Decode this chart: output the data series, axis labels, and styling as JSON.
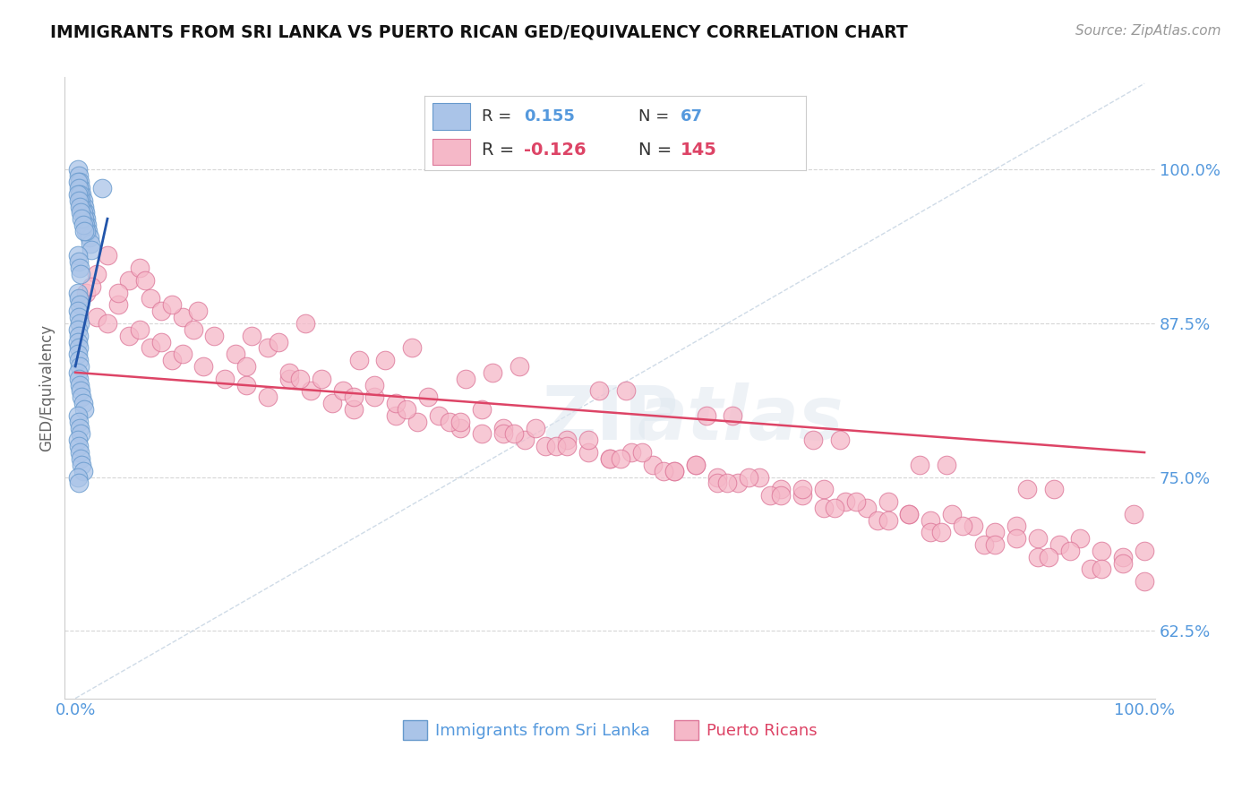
{
  "title": "IMMIGRANTS FROM SRI LANKA VS PUERTO RICAN GED/EQUIVALENCY CORRELATION CHART",
  "source_text": "Source: ZipAtlas.com",
  "ylabel": "GED/Equivalency",
  "legend_label1": "Immigrants from Sri Lanka",
  "legend_label2": "Puerto Ricans",
  "legend_R1_val": "0.155",
  "legend_N1_val": "67",
  "legend_R2_val": "-0.126",
  "legend_N2_val": "145",
  "blue_color": "#aac4e8",
  "blue_edge_color": "#6699cc",
  "pink_color": "#f5b8c8",
  "pink_edge_color": "#dd7799",
  "blue_line_color": "#2255aa",
  "pink_line_color": "#dd4466",
  "ref_line_color": "#bbccdd",
  "grid_color": "#cccccc",
  "background_color": "#ffffff",
  "title_color": "#111111",
  "source_color": "#999999",
  "axis_label_color": "#5599dd",
  "blue_scatter_x": [
    0.2,
    0.3,
    0.4,
    0.5,
    0.6,
    0.7,
    0.8,
    0.9,
    1.0,
    1.1,
    1.2,
    1.3,
    1.4,
    1.5,
    0.2,
    0.3,
    0.4,
    0.5,
    0.6,
    0.7,
    0.8,
    0.9,
    1.0,
    0.2,
    0.3,
    0.4,
    0.5,
    0.6,
    0.7,
    0.8,
    0.2,
    0.3,
    0.4,
    0.2,
    0.3,
    0.4,
    0.2,
    0.3,
    0.2,
    0.3,
    0.2,
    0.3,
    0.4,
    0.2,
    0.3,
    0.4,
    0.5,
    0.6,
    0.7,
    0.8,
    0.2,
    0.3,
    0.4,
    0.5,
    0.2,
    0.3,
    0.4,
    0.5,
    0.6,
    0.7,
    0.2,
    0.3,
    0.2,
    0.3,
    0.4,
    0.5,
    2.5
  ],
  "blue_scatter_y": [
    100.0,
    99.5,
    99.0,
    98.5,
    98.0,
    97.5,
    97.0,
    96.5,
    96.0,
    95.5,
    95.0,
    94.5,
    94.0,
    93.5,
    99.0,
    98.5,
    98.0,
    97.5,
    97.0,
    96.5,
    96.0,
    95.5,
    95.0,
    98.0,
    97.5,
    97.0,
    96.5,
    96.0,
    95.5,
    95.0,
    90.0,
    89.5,
    89.0,
    88.5,
    88.0,
    87.5,
    87.0,
    86.5,
    86.0,
    85.5,
    85.0,
    84.5,
    84.0,
    83.5,
    83.0,
    82.5,
    82.0,
    81.5,
    81.0,
    80.5,
    80.0,
    79.5,
    79.0,
    78.5,
    78.0,
    77.5,
    77.0,
    76.5,
    76.0,
    75.5,
    75.0,
    74.5,
    93.0,
    92.5,
    92.0,
    91.5,
    98.5
  ],
  "pink_scatter_x": [
    1.0,
    2.0,
    3.0,
    4.0,
    5.0,
    6.0,
    7.0,
    8.0,
    9.0,
    10.0,
    12.0,
    14.0,
    16.0,
    18.0,
    20.0,
    22.0,
    24.0,
    26.0,
    28.0,
    30.0,
    32.0,
    34.0,
    36.0,
    38.0,
    40.0,
    42.0,
    44.0,
    46.0,
    48.0,
    50.0,
    52.0,
    54.0,
    56.0,
    58.0,
    60.0,
    62.0,
    64.0,
    66.0,
    68.0,
    70.0,
    72.0,
    74.0,
    76.0,
    78.0,
    80.0,
    82.0,
    84.0,
    86.0,
    88.0,
    90.0,
    92.0,
    94.0,
    96.0,
    98.0,
    100.0,
    3.0,
    5.0,
    7.0,
    10.0,
    15.0,
    20.0,
    25.0,
    30.0,
    35.0,
    40.0,
    45.0,
    50.0,
    55.0,
    60.0,
    65.0,
    70.0,
    75.0,
    80.0,
    85.0,
    90.0,
    95.0,
    100.0,
    2.0,
    4.0,
    8.0,
    13.0,
    18.0,
    23.0,
    28.0,
    33.0,
    38.0,
    43.0,
    48.0,
    53.0,
    58.0,
    63.0,
    68.0,
    73.0,
    78.0,
    83.0,
    88.0,
    93.0,
    98.0,
    6.0,
    11.0,
    16.0,
    21.0,
    26.0,
    31.0,
    36.0,
    41.0,
    46.0,
    51.0,
    56.0,
    61.0,
    66.0,
    71.0,
    76.0,
    81.0,
    86.0,
    91.0,
    96.0,
    9.0,
    19.0,
    29.0,
    39.0,
    49.0,
    59.0,
    69.0,
    79.0,
    89.0,
    99.0,
    1.5,
    11.5,
    21.5,
    31.5,
    41.5,
    51.5,
    61.5,
    71.5,
    81.5,
    91.5,
    6.5,
    16.5,
    26.5,
    36.5
  ],
  "pink_scatter_y": [
    90.0,
    88.0,
    87.5,
    89.0,
    86.5,
    87.0,
    85.5,
    86.0,
    84.5,
    85.0,
    84.0,
    83.0,
    82.5,
    81.5,
    83.0,
    82.0,
    81.0,
    80.5,
    81.5,
    80.0,
    79.5,
    80.0,
    79.0,
    78.5,
    79.0,
    78.0,
    77.5,
    78.0,
    77.0,
    76.5,
    77.0,
    76.0,
    75.5,
    76.0,
    75.0,
    74.5,
    75.0,
    74.0,
    73.5,
    74.0,
    73.0,
    72.5,
    73.0,
    72.0,
    71.5,
    72.0,
    71.0,
    70.5,
    71.0,
    70.0,
    69.5,
    70.0,
    69.0,
    68.5,
    69.0,
    93.0,
    91.0,
    89.5,
    88.0,
    85.0,
    83.5,
    82.0,
    81.0,
    79.5,
    78.5,
    77.5,
    76.5,
    75.5,
    74.5,
    73.5,
    72.5,
    71.5,
    70.5,
    69.5,
    68.5,
    67.5,
    66.5,
    91.5,
    90.0,
    88.5,
    86.5,
    85.5,
    83.0,
    82.5,
    81.5,
    80.5,
    79.0,
    78.0,
    77.0,
    76.0,
    75.0,
    74.0,
    73.0,
    72.0,
    71.0,
    70.0,
    69.0,
    68.0,
    92.0,
    87.0,
    84.0,
    83.0,
    81.5,
    80.5,
    79.5,
    78.5,
    77.5,
    76.5,
    75.5,
    74.5,
    73.5,
    72.5,
    71.5,
    70.5,
    69.5,
    68.5,
    67.5,
    89.0,
    86.0,
    84.5,
    83.5,
    82.0,
    80.0,
    78.0,
    76.0,
    74.0,
    72.0,
    90.5,
    88.5,
    87.5,
    85.5,
    84.0,
    82.0,
    80.0,
    78.0,
    76.0,
    74.0,
    91.0,
    86.5,
    84.5,
    83.0
  ],
  "blue_trend_x0": 0.0,
  "blue_trend_x1": 3.0,
  "blue_trend_y0": 84.0,
  "blue_trend_y1": 96.0,
  "pink_trend_x0": 0.0,
  "pink_trend_x1": 100.0,
  "pink_trend_y0": 83.5,
  "pink_trend_y1": 77.0,
  "ref_line_x0": 0.0,
  "ref_line_x1": 100.0,
  "ref_line_y0": 57.0,
  "ref_line_y1": 107.0,
  "xmin": -1.0,
  "xmax": 101.0,
  "ymin": 57.0,
  "ymax": 107.5,
  "ytick_positions": [
    62.5,
    75.0,
    87.5,
    100.0
  ],
  "ytick_labels": [
    "62.5%",
    "75.0%",
    "87.5%",
    "100.0%"
  ],
  "xtick_positions": [
    0.0,
    100.0
  ],
  "xtick_labels": [
    "0.0%",
    "100.0%"
  ]
}
